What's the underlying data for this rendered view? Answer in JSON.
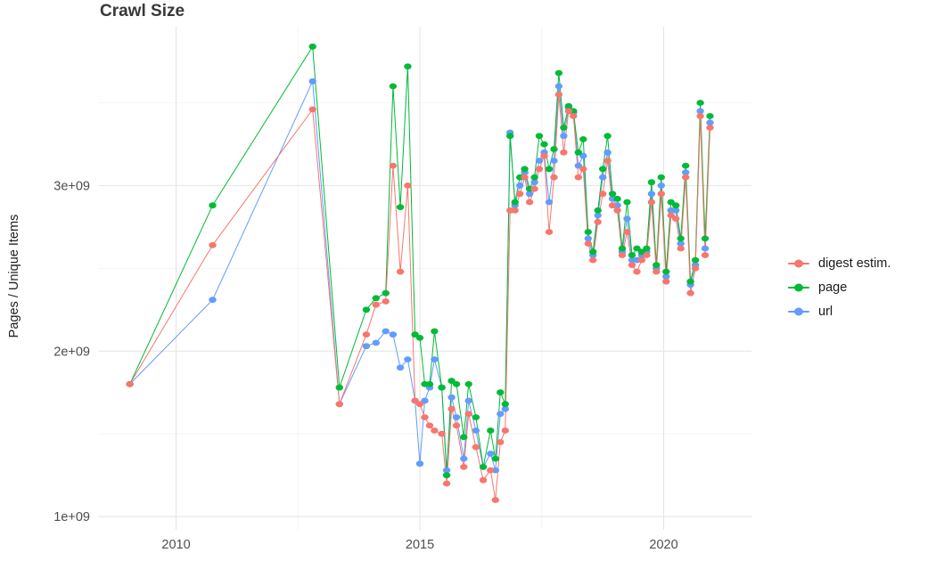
{
  "page": {
    "title": "Crawl Size"
  },
  "chart_data": {
    "type": "line",
    "title": "Crawl Size",
    "xlabel": "",
    "ylabel": "Pages / Unique Items",
    "legend_position": "right",
    "grid": true,
    "background": "#ffffff",
    "axis_text_color": "#4d4d4d",
    "y_unit": "billions (1e9)",
    "xlim": [
      2008.4,
      2021.8
    ],
    "ylim_billions": [
      0.92,
      3.96
    ],
    "x_ticks": {
      "values": [
        2010,
        2015,
        2020
      ],
      "labels": [
        "2010",
        "2015",
        "2020"
      ]
    },
    "y_ticks": {
      "values": [
        1,
        2,
        3
      ],
      "labels": [
        "1e+09",
        "2e+09",
        "3e+09"
      ]
    },
    "x_minor_ticks": [
      2012.5,
      2017.5
    ],
    "y_minor_ticks": [
      1.5,
      2.5,
      3.5
    ],
    "x": [
      2009.05,
      2010.75,
      2012.8,
      2013.35,
      2013.9,
      2014.1,
      2014.3,
      2014.45,
      2014.6,
      2014.75,
      2014.9,
      2015.0,
      2015.1,
      2015.2,
      2015.3,
      2015.45,
      2015.55,
      2015.65,
      2015.75,
      2015.9,
      2016.0,
      2016.15,
      2016.3,
      2016.45,
      2016.55,
      2016.65,
      2016.75,
      2016.85,
      2016.95,
      2017.05,
      2017.15,
      2017.25,
      2017.35,
      2017.45,
      2017.55,
      2017.65,
      2017.75,
      2017.85,
      2017.95,
      2018.05,
      2018.15,
      2018.25,
      2018.35,
      2018.45,
      2018.55,
      2018.65,
      2018.75,
      2018.85,
      2018.95,
      2019.05,
      2019.15,
      2019.25,
      2019.35,
      2019.45,
      2019.55,
      2019.65,
      2019.75,
      2019.85,
      2019.95,
      2020.05,
      2020.15,
      2020.25,
      2020.35,
      2020.45,
      2020.55,
      2020.65,
      2020.75,
      2020.85,
      2020.95
    ],
    "series": [
      {
        "name": "digest estim.",
        "color": "#F8766D",
        "y": [
          1.8,
          2.64,
          3.46,
          1.68,
          2.1,
          2.28,
          2.3,
          3.12,
          2.48,
          3.0,
          1.7,
          1.68,
          1.6,
          1.55,
          1.52,
          1.5,
          1.2,
          1.65,
          1.55,
          1.3,
          1.62,
          1.42,
          1.22,
          1.28,
          1.1,
          1.45,
          1.52,
          2.85,
          2.85,
          2.95,
          3.05,
          2.9,
          2.98,
          3.1,
          3.18,
          2.72,
          3.05,
          3.55,
          3.2,
          3.45,
          3.42,
          3.05,
          3.1,
          2.65,
          2.55,
          2.78,
          2.95,
          3.15,
          2.88,
          2.85,
          2.58,
          2.72,
          2.52,
          2.48,
          2.55,
          2.58,
          2.9,
          2.48,
          2.95,
          2.42,
          2.82,
          2.8,
          2.62,
          3.05,
          2.35,
          2.5,
          3.42,
          2.58,
          3.35
        ]
      },
      {
        "name": "page",
        "color": "#00BA38",
        "y": [
          1.8,
          2.88,
          3.84,
          1.78,
          2.25,
          2.32,
          2.35,
          3.6,
          2.87,
          3.72,
          2.1,
          2.08,
          1.8,
          1.8,
          2.12,
          1.78,
          1.25,
          1.82,
          1.8,
          1.48,
          1.8,
          1.6,
          1.3,
          1.52,
          1.35,
          1.75,
          1.68,
          3.3,
          2.9,
          3.05,
          3.1,
          2.98,
          3.05,
          3.3,
          3.25,
          3.1,
          3.22,
          3.68,
          3.35,
          3.48,
          3.45,
          3.2,
          3.28,
          2.72,
          2.6,
          2.85,
          3.1,
          3.3,
          2.95,
          2.92,
          2.62,
          2.9,
          2.58,
          2.62,
          2.6,
          2.62,
          3.02,
          2.52,
          3.05,
          2.48,
          2.9,
          2.88,
          2.68,
          3.12,
          2.42,
          2.55,
          3.5,
          2.68,
          3.42
        ]
      },
      {
        "name": "url",
        "color": "#619CFF",
        "y": [
          1.8,
          2.31,
          3.63,
          1.68,
          2.03,
          2.05,
          2.12,
          2.1,
          1.9,
          1.95,
          1.7,
          1.32,
          1.7,
          1.78,
          1.95,
          1.78,
          1.28,
          1.72,
          1.6,
          1.35,
          1.7,
          1.52,
          1.3,
          1.38,
          1.28,
          1.62,
          1.65,
          3.32,
          2.88,
          3.0,
          3.08,
          2.95,
          3.02,
          3.15,
          3.2,
          2.9,
          3.15,
          3.6,
          3.3,
          3.47,
          3.44,
          3.12,
          3.18,
          2.68,
          2.58,
          2.82,
          3.05,
          3.2,
          2.92,
          2.88,
          2.6,
          2.8,
          2.55,
          2.55,
          2.58,
          2.6,
          2.95,
          2.5,
          3.0,
          2.45,
          2.85,
          2.85,
          2.65,
          3.08,
          2.4,
          2.52,
          3.45,
          2.62,
          3.38
        ]
      }
    ]
  }
}
